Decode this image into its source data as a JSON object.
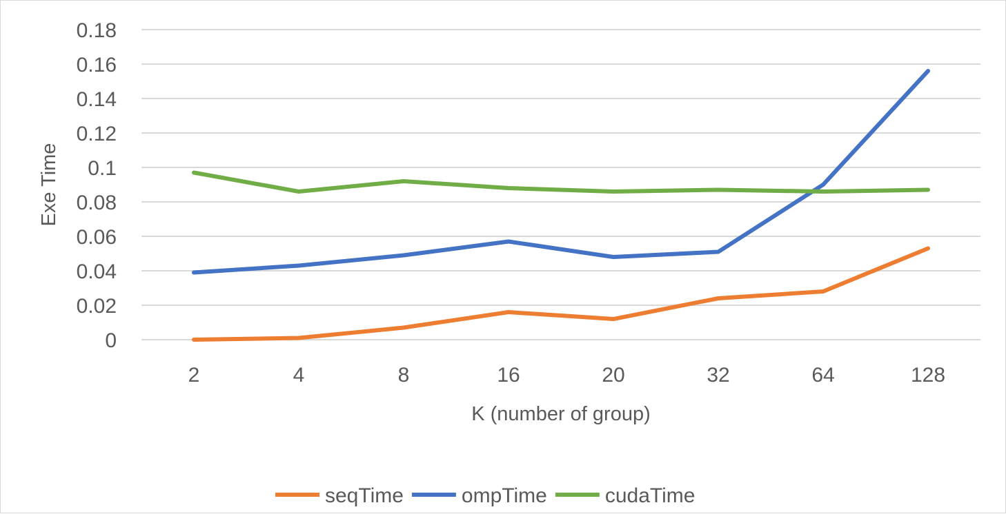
{
  "chart_data": {
    "type": "line",
    "title": "",
    "xlabel": "K (number of group)",
    "ylabel": "Exe Time",
    "categories": [
      "2",
      "4",
      "8",
      "16",
      "20",
      "32",
      "64",
      "128"
    ],
    "ylim": [
      0,
      0.18
    ],
    "yticks": [
      "0",
      "0.02",
      "0.04",
      "0.06",
      "0.08",
      "0.1",
      "0.12",
      "0.14",
      "0.16",
      "0.18"
    ],
    "grid": true,
    "legend_position": "bottom",
    "series": [
      {
        "name": "seqTime",
        "color": "#ed7d31",
        "values": [
          0.0,
          0.001,
          0.007,
          0.016,
          0.012,
          0.024,
          0.028,
          0.053
        ]
      },
      {
        "name": "ompTime",
        "color": "#4472c4",
        "values": [
          0.039,
          0.043,
          0.049,
          0.057,
          0.048,
          0.051,
          0.09,
          0.156
        ]
      },
      {
        "name": "cudaTime",
        "color": "#70ad47",
        "values": [
          0.097,
          0.086,
          0.092,
          0.088,
          0.086,
          0.087,
          0.086,
          0.087
        ]
      }
    ]
  }
}
